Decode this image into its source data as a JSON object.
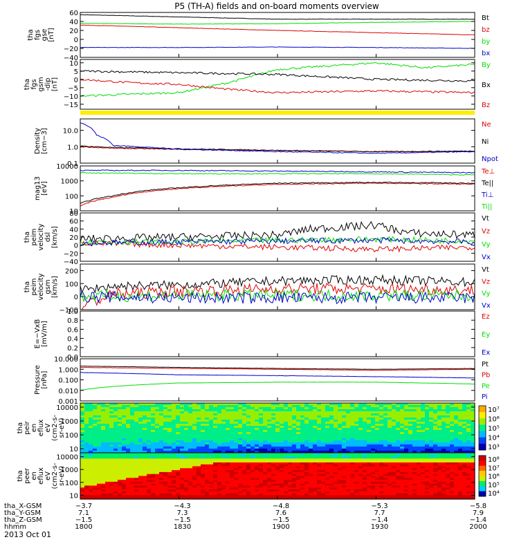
{
  "title": "P5 (TH-A) fields and on-board moments overview",
  "date_label": "2013 Oct 01",
  "colors": {
    "black": "#000000",
    "red": "#dd0000",
    "green": "#00dd00",
    "blue": "#0000cc",
    "yellow": "#ffee00"
  },
  "chart_data": [
    {
      "type": "line",
      "panel": "fgs-gse",
      "ylabel_lines": [
        "tha",
        "fgs",
        "gse",
        "[nT]"
      ],
      "yticks": [
        "60",
        "40",
        "20",
        "0",
        "−20",
        "−40"
      ],
      "ylim": [
        -40,
        60
      ],
      "series": [
        {
          "name": "Bt",
          "color": "black",
          "x": [
            1800,
            1830,
            1900,
            1930,
            2000
          ],
          "values": [
            55,
            50,
            45,
            45,
            45
          ]
        },
        {
          "name": "bz",
          "color": "red",
          "x": [
            1800,
            1830,
            1900,
            1930,
            2000
          ],
          "values": [
            32,
            26,
            20,
            15,
            10
          ]
        },
        {
          "name": "by",
          "color": "green",
          "x": [
            1800,
            1830,
            1900,
            1930,
            2000
          ],
          "values": [
            36,
            34,
            35,
            38,
            40
          ]
        },
        {
          "name": "bx",
          "color": "blue",
          "x": [
            1800,
            1830,
            1900,
            1930,
            2000
          ],
          "values": [
            -18,
            -18,
            -17,
            -18,
            -20
          ]
        }
      ]
    },
    {
      "type": "line",
      "panel": "fgs-gsm-dip",
      "ylabel_lines": [
        "tha",
        "fgs",
        "gsm",
        "-dip",
        "[nT]"
      ],
      "yticks": [
        "10",
        "5",
        "0",
        "−5",
        "−10",
        "−15"
      ],
      "ylim": [
        -18,
        12
      ],
      "series": [
        {
          "name": "By",
          "color": "green",
          "x": [
            1800,
            1815,
            1830,
            1845,
            1900,
            1915,
            1930,
            1945,
            2000
          ],
          "values": [
            -10,
            -9,
            -8,
            -2,
            6,
            8,
            10,
            7,
            9
          ]
        },
        {
          "name": "Bx",
          "color": "black",
          "x": [
            1800,
            1830,
            1900,
            1930,
            2000
          ],
          "values": [
            5,
            4,
            3,
            0,
            -1
          ]
        },
        {
          "name": "Bz",
          "color": "red",
          "x": [
            1800,
            1815,
            1830,
            1845,
            1900,
            1930,
            2000
          ],
          "values": [
            0,
            -2,
            -3,
            -6,
            -8,
            -7,
            -8
          ]
        }
      ]
    },
    {
      "type": "line",
      "panel": "density",
      "ylabel_lines": [
        "Density",
        "[cm−3]"
      ],
      "yticks": [
        "10.0",
        "1.0",
        "0.1"
      ],
      "yscale": "log",
      "ylim": [
        0.1,
        50
      ],
      "series": [
        {
          "name": "Ne",
          "color": "red",
          "x": [
            1800,
            1810,
            1830,
            1900,
            1930,
            2000
          ],
          "values": [
            1.0,
            0.8,
            0.7,
            0.6,
            0.5,
            0.5
          ]
        },
        {
          "name": "Ni",
          "color": "black",
          "x": [
            1800,
            1810,
            1830,
            1900,
            1930,
            2000
          ],
          "values": [
            1.1,
            0.9,
            0.75,
            0.6,
            0.5,
            0.55
          ]
        },
        {
          "name": "Npot",
          "color": "blue",
          "x": [
            1800,
            1805,
            1810,
            1830,
            1900,
            1930,
            2000
          ],
          "values": [
            30,
            5,
            1.2,
            0.7,
            0.5,
            0.4,
            0.5
          ]
        }
      ]
    },
    {
      "type": "line",
      "panel": "temperature",
      "ylabel_lines": [
        "mag13",
        "[eV]"
      ],
      "yticks": [
        "10000",
        "1000",
        "100",
        "10"
      ],
      "yscale": "log",
      "ylim": [
        10,
        10000
      ],
      "series": [
        {
          "name": "Te⊥",
          "color": "red",
          "x": [
            1800,
            1810,
            1830,
            1900,
            1930,
            2000
          ],
          "values": [
            20,
            80,
            300,
            600,
            700,
            600
          ]
        },
        {
          "name": "Te||",
          "color": "black",
          "x": [
            1800,
            1810,
            1830,
            1900,
            1930,
            2000
          ],
          "values": [
            30,
            100,
            350,
            700,
            800,
            700
          ]
        },
        {
          "name": "Ti⊥",
          "color": "blue",
          "x": [
            1800,
            1830,
            1900,
            1930,
            2000
          ],
          "values": [
            5000,
            5000,
            4500,
            4000,
            3500
          ]
        },
        {
          "name": "Ti||",
          "color": "green",
          "x": [
            1800,
            1830,
            1900,
            1930,
            2000
          ],
          "values": [
            3500,
            3000,
            3000,
            3000,
            2500
          ]
        }
      ]
    },
    {
      "type": "line",
      "panel": "velocity-dsl",
      "ylabel_lines": [
        "tha",
        "peim",
        "velocity",
        "dsl",
        "[km/s]"
      ],
      "yticks": [
        "80",
        "60",
        "40",
        "20",
        "0",
        "−20",
        "−40"
      ],
      "ylim": [
        -40,
        80
      ],
      "series": [
        {
          "name": "Vt",
          "color": "black",
          "x": [
            1800,
            1830,
            1900,
            1910,
            1930,
            1940,
            2000
          ],
          "values": [
            15,
            20,
            25,
            40,
            50,
            30,
            25
          ]
        },
        {
          "name": "Vz",
          "color": "red",
          "x": [
            1800,
            1830,
            1900,
            1930,
            2000
          ],
          "values": [
            5,
            0,
            -5,
            -10,
            -5
          ]
        },
        {
          "name": "Vy",
          "color": "green",
          "x": [
            1800,
            1830,
            1900,
            1930,
            2000
          ],
          "values": [
            8,
            8,
            12,
            15,
            10
          ]
        },
        {
          "name": "Vx",
          "color": "blue",
          "x": [
            1800,
            1830,
            1900,
            1930,
            2000
          ],
          "values": [
            5,
            8,
            10,
            12,
            8
          ]
        }
      ]
    },
    {
      "type": "line",
      "panel": "velocity-gsm",
      "ylabel_lines": [
        "tha",
        "peim",
        "velocity",
        "gsm",
        "[km/s]"
      ],
      "yticks": [
        "200",
        "100",
        "0",
        "−100"
      ],
      "ylim": [
        -100,
        250
      ],
      "series": [
        {
          "name": "Vt",
          "color": "black",
          "x": [
            1800,
            1810,
            1830,
            1900,
            1930,
            2000
          ],
          "values": [
            50,
            80,
            90,
            120,
            130,
            110
          ]
        },
        {
          "name": "Vz",
          "color": "red",
          "x": [
            1800,
            1810,
            1830,
            1900,
            1930,
            2000
          ],
          "values": [
            -80,
            20,
            40,
            60,
            60,
            50
          ]
        },
        {
          "name": "Vy",
          "color": "green",
          "x": [
            1800,
            1830,
            1900,
            1930,
            2000
          ],
          "values": [
            0,
            10,
            10,
            10,
            10
          ]
        },
        {
          "name": "Vx",
          "color": "blue",
          "x": [
            1800,
            1830,
            1900,
            1930,
            2000
          ],
          "values": [
            0,
            -10,
            -10,
            -10,
            -10
          ]
        }
      ]
    },
    {
      "type": "line",
      "panel": "e-field",
      "ylabel_lines": [
        "E=−VxB",
        "[mV/m]"
      ],
      "yticks": [
        "1.0",
        "0.8",
        "0.6",
        "0.4",
        "0.2",
        "0.0"
      ],
      "ylim": [
        0,
        1
      ],
      "series": [
        {
          "name": "Ez",
          "color": "red",
          "x": [],
          "values": []
        },
        {
          "name": "Ey",
          "color": "green",
          "x": [],
          "values": []
        },
        {
          "name": "Ex",
          "color": "blue",
          "x": [],
          "values": []
        }
      ]
    },
    {
      "type": "line",
      "panel": "pressure",
      "ylabel_lines": [
        "Pressure",
        "[nPa]"
      ],
      "yticks": [
        "10.000",
        "1.000",
        "0.100",
        "0.010",
        "0.001"
      ],
      "yscale": "log",
      "ylim": [
        0.001,
        10
      ],
      "series": [
        {
          "name": "Pt",
          "color": "black",
          "x": [
            1800,
            1830,
            1900,
            1930,
            2000
          ],
          "values": [
            2.0,
            1.5,
            1.2,
            1.0,
            1.2
          ]
        },
        {
          "name": "Pb",
          "color": "red",
          "x": [
            1800,
            1830,
            1900,
            1930,
            2000
          ],
          "values": [
            1.5,
            1.2,
            1.0,
            0.8,
            1.0
          ]
        },
        {
          "name": "Pe",
          "color": "green",
          "x": [
            1800,
            1815,
            1830,
            1900,
            1930,
            2000
          ],
          "values": [
            0.01,
            0.03,
            0.05,
            0.06,
            0.06,
            0.04
          ]
        },
        {
          "name": "Pi",
          "color": "blue",
          "x": [
            1800,
            1830,
            1900,
            1930,
            2000
          ],
          "values": [
            0.5,
            0.3,
            0.25,
            0.2,
            0.15
          ]
        }
      ]
    },
    {
      "type": "heatmap",
      "panel": "peir-en-eflux",
      "ylabel_lines": [
        "tha",
        "peir",
        "en",
        "eflux",
        "eV",
        "(cm2-s-",
        "sr-eV)"
      ],
      "yticks": [
        "10000",
        "1000",
        "100",
        "10"
      ],
      "yscale": "log",
      "ylim": [
        5,
        20000
      ],
      "colorbar_ticks": [
        "10⁷",
        "10⁶",
        "10⁵",
        "10⁴",
        "10³"
      ]
    },
    {
      "type": "heatmap",
      "panel": "peer-en-eflux",
      "ylabel_lines": [
        "tha",
        "peer",
        "en",
        "eflux",
        "eV",
        "(cm2-s-",
        "sr-eV)"
      ],
      "yticks": [
        "10000",
        "1000",
        "100",
        "10"
      ],
      "yscale": "log",
      "ylim": [
        5,
        20000
      ],
      "colorbar_ticks": [
        "10⁸",
        "10⁷",
        "10⁶",
        "10⁵",
        "10⁴"
      ]
    }
  ],
  "xaxis": {
    "rows": [
      {
        "label": "tha_X-GSM",
        "values": [
          "−3.7",
          "−4.3",
          "−4.8",
          "−5.3",
          "−5.8"
        ]
      },
      {
        "label": "tha_Y-GSM",
        "values": [
          "7.1",
          "7.3",
          "7.6",
          "7.7",
          "7.9"
        ]
      },
      {
        "label": "tha_Z-GSM",
        "values": [
          "−1.5",
          "−1.5",
          "−1.5",
          "−1.4",
          "−1.4"
        ]
      },
      {
        "label": "hhmm",
        "values": [
          "1800",
          "1830",
          "1900",
          "1930",
          "2000"
        ]
      }
    ]
  }
}
